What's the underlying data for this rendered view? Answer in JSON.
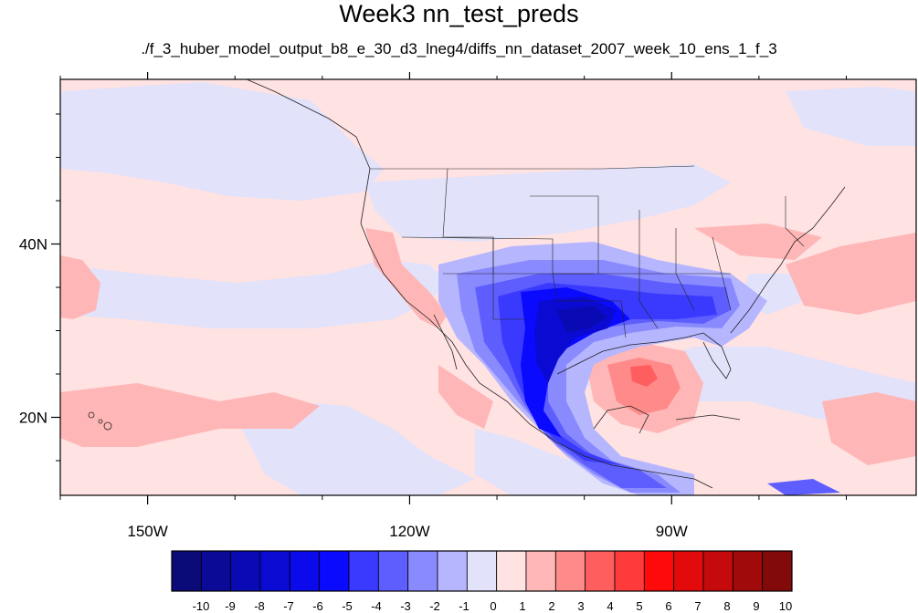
{
  "title": "Week3 nn_test_preds",
  "subtitle": "./f_3_huber_model_output_b8_e_30_d3_lneg4/diffs_nn_dataset_2007_week_10_ens_1_f_3",
  "map": {
    "lon_range": [
      -160,
      -62
    ],
    "lat_range": [
      11,
      59
    ],
    "lon_ticks": [
      {
        "value": -150,
        "label": "150W"
      },
      {
        "value": -120,
        "label": "120W"
      },
      {
        "value": -90,
        "label": "90W"
      }
    ],
    "lat_ticks": [
      {
        "value": 40,
        "label": "40N"
      },
      {
        "value": 20,
        "label": "20N"
      }
    ],
    "minor_lon_ticks": [
      -160,
      -140,
      -130,
      -110,
      -100,
      -80,
      -70
    ],
    "minor_lat_ticks": [
      15,
      25,
      30,
      35,
      45,
      50,
      55
    ]
  },
  "colorbar": {
    "labels": [
      "-10",
      "-9",
      "-8",
      "-7",
      "-6",
      "-5",
      "-4",
      "-3",
      "-2",
      "-1",
      "0",
      "1",
      "2",
      "3",
      "4",
      "5",
      "6",
      "7",
      "8",
      "9",
      "10"
    ],
    "colors": [
      "#0a0a78",
      "#0a0a96",
      "#0a0ab4",
      "#0a0ad2",
      "#0a0aea",
      "#0a0aff",
      "#3a3aff",
      "#5e5eff",
      "#8a8aff",
      "#b6b6ff",
      "#e2e2fa",
      "#ffe2e2",
      "#ffb6b6",
      "#ff8a8a",
      "#ff5e5e",
      "#ff3a3a",
      "#ff0a0a",
      "#e20a0a",
      "#c40a0a",
      "#a00a0a",
      "#820a0a"
    ]
  }
}
